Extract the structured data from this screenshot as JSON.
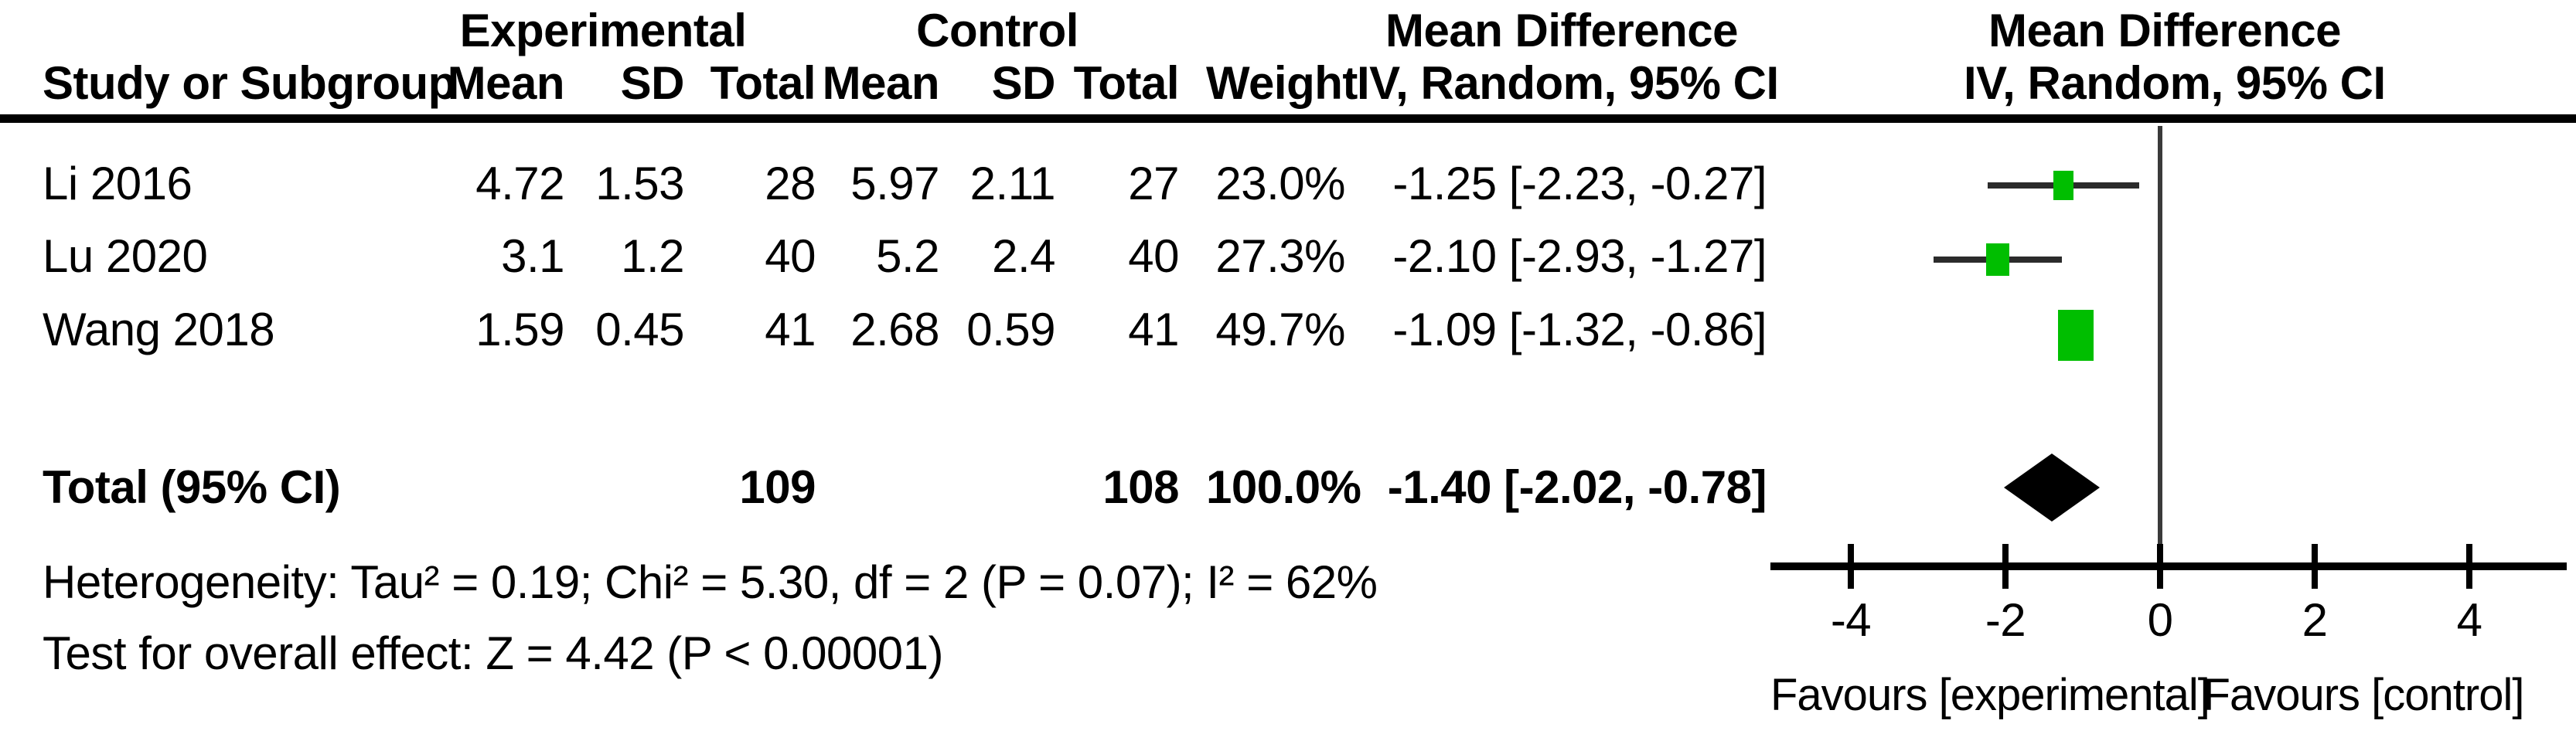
{
  "header": {
    "group_experimental": "Experimental",
    "group_control": "Control",
    "effect_col_title": "Mean Difference",
    "effect_plot_title": "Mean Difference",
    "study_col": "Study or Subgroup",
    "mean_e": "Mean",
    "sd_e": "SD",
    "total_e": "Total",
    "mean_c": "Mean",
    "sd_c": "SD",
    "total_c": "Total",
    "weight_col": "Weight",
    "method_col": "IV, Random, 95% CI",
    "method_plot": "IV, Random, 95% CI"
  },
  "rows": [
    {
      "study": "Li 2016",
      "mean_e": "4.72",
      "sd_e": "1.53",
      "total_e": "28",
      "mean_c": "5.97",
      "sd_c": "2.11",
      "total_c": "27",
      "weight": "23.0%",
      "ci": "-1.25 [-2.23, -0.27]"
    },
    {
      "study": "Lu 2020",
      "mean_e": "3.1",
      "sd_e": "1.2",
      "total_e": "40",
      "mean_c": "5.2",
      "sd_c": "2.4",
      "total_c": "40",
      "weight": "27.3%",
      "ci": "-2.10 [-2.93, -1.27]"
    },
    {
      "study": "Wang 2018",
      "mean_e": "1.59",
      "sd_e": "0.45",
      "total_e": "41",
      "mean_c": "2.68",
      "sd_c": "0.59",
      "total_c": "41",
      "weight": "49.7%",
      "ci": "-1.09 [-1.32, -0.86]"
    }
  ],
  "total_row": {
    "label": "Total (95% CI)",
    "total_e": "109",
    "total_c": "108",
    "weight": "100.0%",
    "ci": "-1.40 [-2.02, -0.78]"
  },
  "footer": {
    "heterogeneity": "Heterogeneity: Tau² = 0.19; Chi² = 5.30, df = 2 (P = 0.07); I² = 62%",
    "overall_effect": "Test for overall effect: Z = 4.42 (P < 0.00001)"
  },
  "chart_data": {
    "type": "forest",
    "effect_measure": "Mean Difference",
    "model": "IV, Random, 95% CI",
    "x_axis": {
      "min": -4,
      "max": 4,
      "ticks": [
        -4,
        -2,
        0,
        2,
        4
      ],
      "zero_line": 0
    },
    "studies": [
      {
        "label": "Li 2016",
        "md": -1.25,
        "ci_low": -2.23,
        "ci_high": -0.27,
        "weight_pct": 23.0
      },
      {
        "label": "Lu 2020",
        "md": -2.1,
        "ci_low": -2.93,
        "ci_high": -1.27,
        "weight_pct": 27.3
      },
      {
        "label": "Wang 2018",
        "md": -1.09,
        "ci_low": -1.32,
        "ci_high": -0.86,
        "weight_pct": 49.7
      }
    ],
    "total": {
      "md": -1.4,
      "ci_low": -2.02,
      "ci_high": -0.78,
      "weight_pct": 100.0
    },
    "favours_left": "Favours [experimental]",
    "favours_right": "Favours [control]",
    "marker_color": "#00BE00",
    "ci_line_color": "#2b2b2b",
    "diamond_color": "#000000",
    "axis_color": "#000000",
    "zero_line_color": "#3a3a3a"
  }
}
